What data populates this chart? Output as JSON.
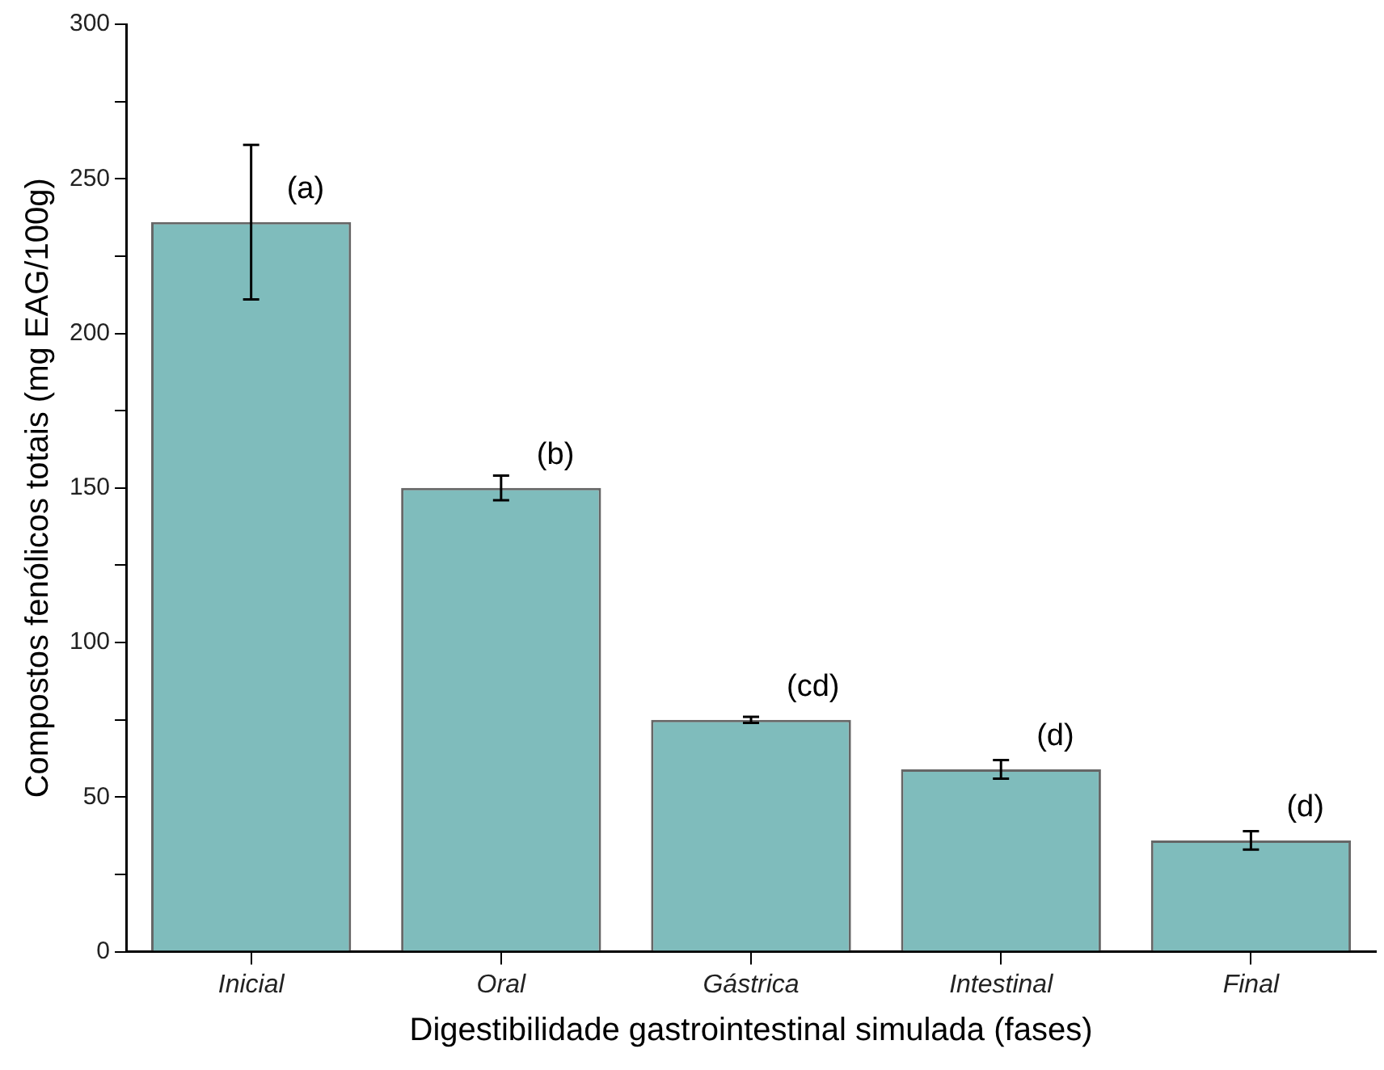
{
  "chart_data": {
    "type": "bar",
    "xlabel": "Digestibilidade gastrointestinal simulada (fases)",
    "ylabel": "Compostos fenólicos totais (mg EAG/100g)",
    "categories": [
      "Inicial",
      "Oral",
      "Gástrica",
      "Intestinal",
      "Final"
    ],
    "values": [
      236,
      150,
      75,
      59,
      36
    ],
    "errors": [
      25,
      4,
      1,
      3,
      3
    ],
    "color": "#7fbcbc",
    "ylim": [
      0,
      300
    ],
    "yticks": [
      0,
      {
        "value": 25,
        "label": null
      },
      50,
      {
        "value": 75,
        "label": null
      },
      100,
      {
        "value": 125,
        "label": null
      },
      150,
      {
        "value": 175,
        "label": null
      },
      200,
      {
        "value": 225,
        "label": null
      },
      250,
      {
        "value": 275,
        "label": null
      },
      300
    ],
    "annotations": [
      {
        "text": "(a)",
        "x": "Inicial",
        "y": 236
      },
      {
        "text": "(b)",
        "x": "Oral",
        "y": 150
      },
      {
        "text": "(cd)",
        "x": "Gástrica",
        "y": 75
      },
      {
        "text": "(d)",
        "x": "Intestinal",
        "y": 59
      },
      {
        "text": "(d)",
        "x": "Final",
        "y": 36
      }
    ]
  }
}
